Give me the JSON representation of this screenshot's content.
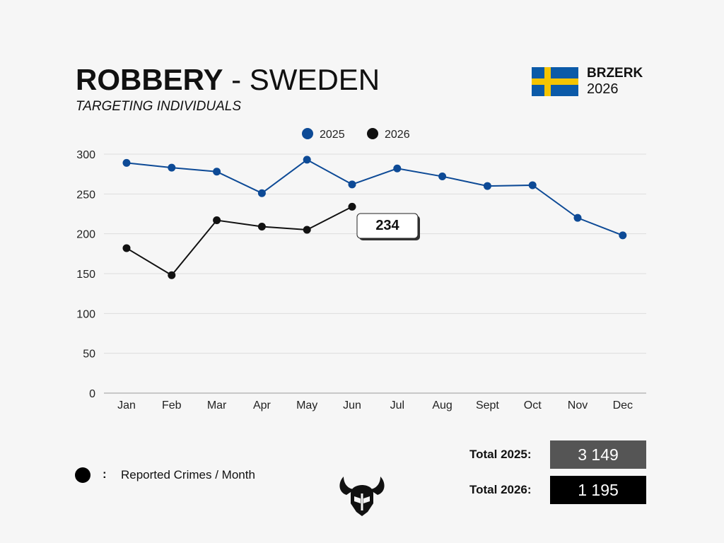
{
  "header": {
    "title_bold": "ROBBERY",
    "title_rest": " - SWEDEN",
    "subtitle": "TARGETING INDIVIDUALS"
  },
  "brand": {
    "name": "BRZERK",
    "year": "2026",
    "flag_icon": "sweden-flag-icon",
    "logo_icon": "viking-helmet-logo-icon"
  },
  "colors": {
    "series_2025": "#0d4a96",
    "series_2026": "#111111",
    "grid": "#dddddd",
    "total_2025_bg": "#555555",
    "total_2026_bg": "#000000",
    "flag_blue": "#0b5aa8",
    "flag_yellow": "#f5c400"
  },
  "chart_data": {
    "type": "line",
    "categories": [
      "Jan",
      "Feb",
      "Mar",
      "Apr",
      "May",
      "Jun",
      "Jul",
      "Aug",
      "Sept",
      "Oct",
      "Nov",
      "Dec"
    ],
    "series": [
      {
        "name": "2025",
        "values": [
          289,
          283,
          278,
          251,
          293,
          262,
          282,
          272,
          260,
          261,
          220,
          198
        ]
      },
      {
        "name": "2026",
        "values": [
          182,
          148,
          217,
          209,
          205,
          234,
          null,
          null,
          null,
          null,
          null,
          null
        ]
      }
    ],
    "ylim": [
      0,
      300
    ],
    "yticks": [
      0,
      50,
      100,
      150,
      200,
      250,
      300
    ],
    "grid": true,
    "legend_position": "top-center",
    "annotation": {
      "series": "2026",
      "category": "Jun",
      "label": "234"
    }
  },
  "footer": {
    "legend_colon": ":",
    "legend_text": "Reported Crimes / Month",
    "total_2025_label": "Total 2025:",
    "total_2025_value": "3 149",
    "total_2026_label": "Total 2026:",
    "total_2026_value": "1 195"
  }
}
